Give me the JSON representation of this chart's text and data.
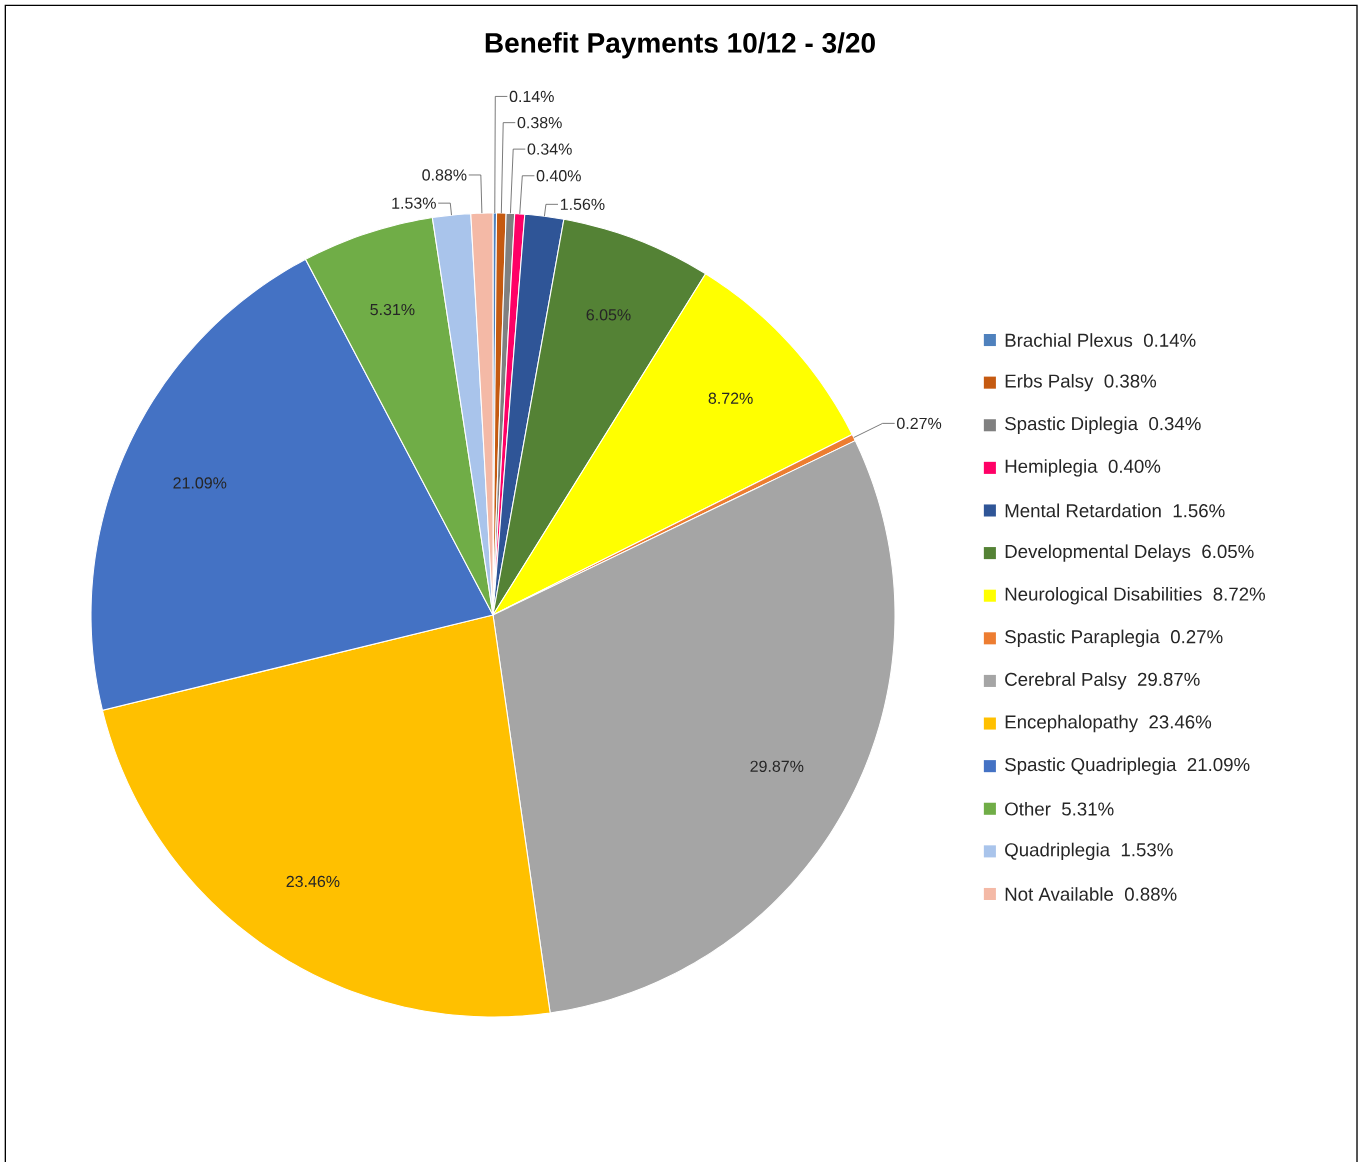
{
  "chart_data": {
    "type": "pie",
    "title": "Benefit Payments 10/12 - 3/20",
    "categories": [
      "Brachial Plexus",
      "Erbs Palsy",
      "Spastic Diplegia",
      "Hemiplegia",
      "Mental Retardation",
      "Developmental Delays",
      "Neurological Disabilities",
      "Spastic Paraplegia",
      "Cerebral Palsy",
      "Encephalopathy",
      "Spastic Quadriplegia",
      "Other",
      "Quadriplegia",
      "Not Available"
    ],
    "values": [
      0.14,
      0.38,
      0.34,
      0.4,
      1.56,
      6.05,
      8.72,
      0.27,
      29.87,
      23.46,
      21.09,
      5.31,
      1.53,
      0.88
    ],
    "value_labels": [
      "0.14%",
      "0.38%",
      "0.34%",
      "0.40%",
      "1.56%",
      "6.05%",
      "8.72%",
      "0.27%",
      "29.87%",
      "23.46%",
      "21.09%",
      "5.31%",
      "1.53%",
      "0.88%"
    ],
    "colors": [
      "#4f81bd",
      "#c55a11",
      "#808080",
      "#ff0066",
      "#2f5597",
      "#548235",
      "#ffff00",
      "#ed7d31",
      "#a5a5a5",
      "#ffc000",
      "#4472c4",
      "#70ad47",
      "#a9c4eb",
      "#f4b9a6"
    ],
    "legend": "right"
  }
}
